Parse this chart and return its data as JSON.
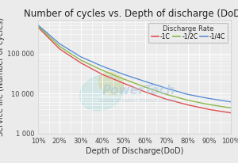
{
  "title": "Number of cycles vs. Depth of discharge (DoD)",
  "xlabel": "Depth of Discharge(DoD)",
  "ylabel": "Service life (Number of cycles)",
  "dod_values": [
    0.1,
    0.2,
    0.3,
    0.4,
    0.5,
    0.6,
    0.7,
    0.8,
    0.9,
    1.0
  ],
  "cycles_1C": [
    450000,
    130000,
    58000,
    30000,
    18000,
    11000,
    7200,
    5200,
    4000,
    3300
  ],
  "cycles_half_C": [
    480000,
    150000,
    68000,
    38000,
    23000,
    14500,
    9500,
    6800,
    5300,
    4400
  ],
  "cycles_quarter_C": [
    510000,
    175000,
    82000,
    48000,
    30000,
    20000,
    13500,
    9500,
    7500,
    6200
  ],
  "color_1C": "#e05050",
  "color_half_C": "#8db84a",
  "color_quarter_C": "#5b8ed6",
  "bg_color": "#ebebeb",
  "grid_color": "#ffffff",
  "legend_title": "Discharge Rate",
  "legend_labels": [
    "-1C",
    "-1/2C",
    "-1/4C"
  ],
  "ylim_min": 1000,
  "ylim_max": 700000,
  "title_fontsize": 8.5,
  "label_fontsize": 7,
  "tick_fontsize": 6
}
